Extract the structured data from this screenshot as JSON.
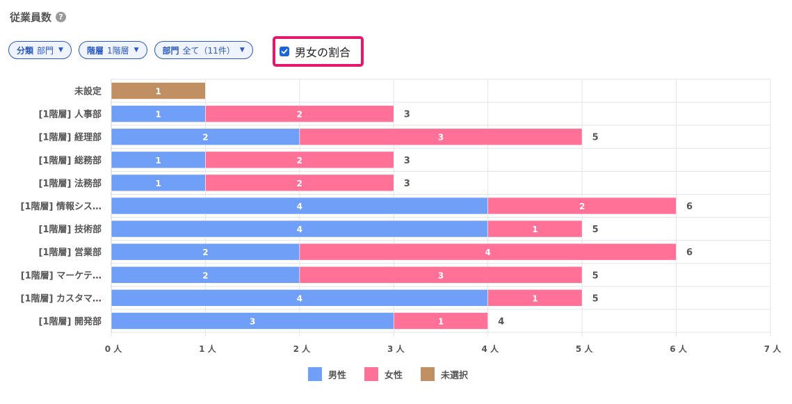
{
  "header": {
    "title": "従業員数",
    "help_icon": "question-circle-icon"
  },
  "filters": [
    {
      "key": "分類",
      "value": "部門"
    },
    {
      "key": "階層",
      "value": "1階層"
    },
    {
      "key": "部門",
      "value": "全て（11件）"
    }
  ],
  "gender_ratio": {
    "label": "男女の割合",
    "checked": true
  },
  "colors": {
    "male": "#6f9ff6",
    "female": "#ff7196",
    "unselected": "#c19062",
    "highlight": "#e4196c"
  },
  "chart_data": {
    "type": "bar",
    "orientation": "horizontal",
    "stacked": true,
    "categories": [
      "未設定",
      "[1階層] 人事部",
      "[1階層] 経理部",
      "[1階層] 総務部",
      "[1階層] 法務部",
      "[1階層] 情報シス…",
      "[1階層] 技術部",
      "[1階層] 営業部",
      "[1階層] マーケテ…",
      "[1階層] カスタマ…",
      "[1階層] 開発部"
    ],
    "series": [
      {
        "name": "男性",
        "values": [
          0,
          1,
          2,
          1,
          1,
          4,
          4,
          2,
          2,
          4,
          3
        ]
      },
      {
        "name": "女性",
        "values": [
          0,
          2,
          3,
          2,
          2,
          2,
          1,
          4,
          3,
          1,
          1
        ]
      },
      {
        "name": "未選択",
        "values": [
          1,
          0,
          0,
          0,
          0,
          0,
          0,
          0,
          0,
          0,
          0
        ]
      }
    ],
    "totals": [
      "",
      "3",
      "5",
      "3",
      "3",
      "6",
      "5",
      "6",
      "5",
      "5",
      "4"
    ],
    "x_ticks": [
      "0 人",
      "1 人",
      "2 人",
      "3 人",
      "4 人",
      "5 人",
      "6 人",
      "7 人"
    ],
    "xlim": [
      0,
      7
    ],
    "grid": true,
    "legend_position": "bottom"
  }
}
